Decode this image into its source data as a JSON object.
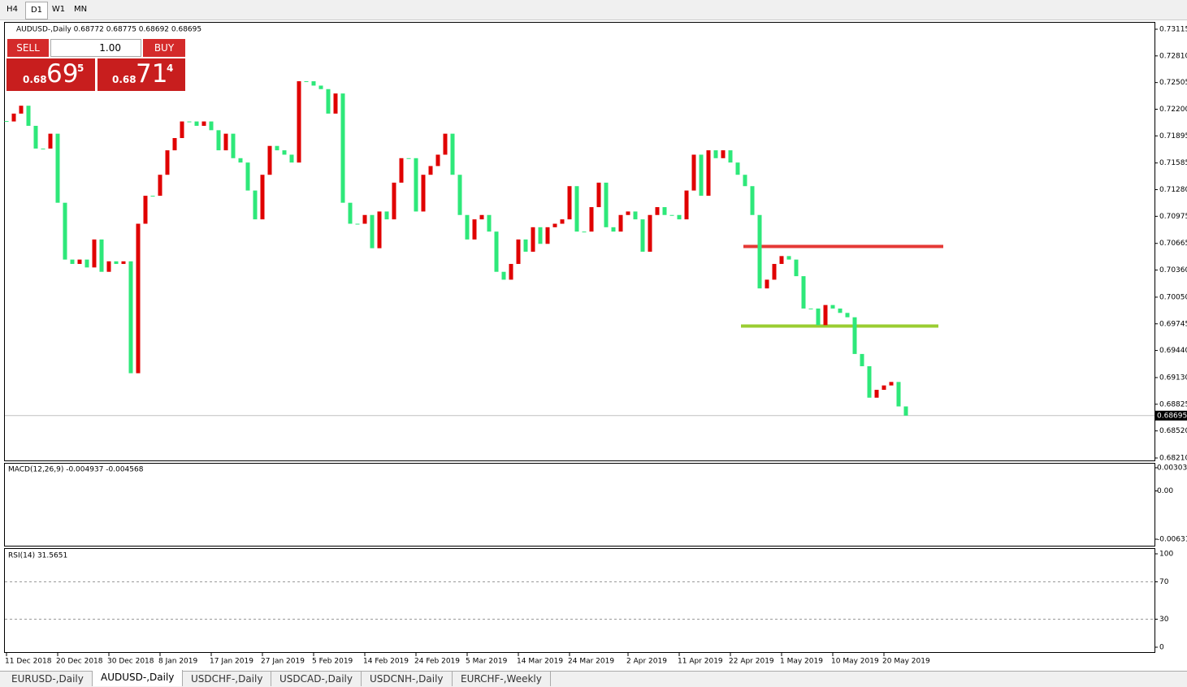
{
  "toolbar": {
    "timeframes": [
      "H4",
      "D1",
      "W1",
      "MN"
    ]
  },
  "trade_panel": {
    "sell": "SELL",
    "lots": "1.00",
    "buy": "BUY",
    "bid_prefix": "0.68",
    "bid_big": "69",
    "bid_small": "5",
    "ask_prefix": "0.68",
    "ask_big": "71",
    "ask_small": "4"
  },
  "chart_data": {
    "type": "candlestick",
    "title": "AUDUSD-,Daily 0.68772 0.68775 0.68692 0.68695",
    "close": [
      0.7206,
      0.7215,
      0.7224,
      0.7201,
      0.7175,
      0.7175,
      0.7192,
      0.7113,
      0.7048,
      0.7043,
      0.7048,
      0.7039,
      0.7071,
      0.7034,
      0.7046,
      0.7043,
      0.7046,
      0.6918,
      0.7089,
      0.7121,
      0.7121,
      0.7145,
      0.7173,
      0.7187,
      0.7206,
      0.7206,
      0.7201,
      0.7206,
      0.7196,
      0.7173,
      0.7192,
      0.7164,
      0.7159,
      0.7127,
      0.7094,
      0.7145,
      0.7178,
      0.7173,
      0.7168,
      0.7159,
      0.7252,
      0.7252,
      0.7247,
      0.7243,
      0.7215,
      0.7238,
      0.7113,
      0.7089,
      0.7089,
      0.7099,
      0.7061,
      0.7103,
      0.7094,
      0.7136,
      0.7164,
      0.7164,
      0.7103,
      0.7145,
      0.7155,
      0.7168,
      0.7192,
      0.7145,
      0.7099,
      0.7071,
      0.7094,
      0.7099,
      0.708,
      0.7034,
      0.7025,
      0.7043,
      0.7071,
      0.7057,
      0.7085,
      0.7066,
      0.7085,
      0.7089,
      0.7094,
      0.7132,
      0.708,
      0.708,
      0.7108,
      0.7136,
      0.7085,
      0.708,
      0.7099,
      0.7103,
      0.7094,
      0.7057,
      0.7099,
      0.7108,
      0.7099,
      0.7099,
      0.7094,
      0.7127,
      0.7168,
      0.7121,
      0.7173,
      0.7164,
      0.7173,
      0.7159,
      0.7145,
      0.7132,
      0.7099,
      0.7015,
      0.7025,
      0.7043,
      0.7052,
      0.7048,
      0.7029,
      0.6992,
      0.6992,
      0.6973,
      0.6996,
      0.6992,
      0.6987,
      0.6982,
      0.694,
      0.6926,
      0.689,
      0.6899,
      0.6904,
      0.6908,
      0.688,
      0.68695
    ],
    "categories": [
      "11 Dec 2018",
      null,
      null,
      null,
      null,
      null,
      null,
      "20 Dec 2018",
      null,
      null,
      null,
      null,
      null,
      null,
      "30 Dec 2018",
      null,
      null,
      null,
      null,
      null,
      null,
      "8 Jan 2019",
      null,
      null,
      null,
      null,
      null,
      null,
      "17 Jan 2019",
      null,
      null,
      null,
      null,
      null,
      null,
      "27 Jan 2019",
      null,
      null,
      null,
      null,
      null,
      null,
      "5 Feb 2019",
      null,
      null,
      null,
      null,
      null,
      null,
      "14 Feb 2019",
      null,
      null,
      null,
      null,
      null,
      null,
      "24 Feb 2019",
      null,
      null,
      null,
      null,
      null,
      null,
      "5 Mar 2019",
      null,
      null,
      null,
      null,
      null,
      null,
      "14 Mar 2019",
      null,
      null,
      null,
      null,
      null,
      null,
      "24 Mar 2019",
      null,
      null,
      null,
      null,
      null,
      null,
      null,
      "2 Apr 2019",
      null,
      null,
      null,
      null,
      null,
      null,
      "11 Apr 2019",
      null,
      null,
      null,
      null,
      null,
      null,
      "22 Apr 2019",
      null,
      null,
      null,
      null,
      null,
      null,
      "1 May 2019",
      null,
      null,
      null,
      null,
      null,
      null,
      "10 May 2019",
      null,
      null,
      null,
      null,
      null,
      null,
      "20 May 2019",
      null,
      null,
      null
    ],
    "up_color": "#e00000",
    "down_color": "#2ee87a",
    "ylim": [
      0.6821,
      0.73115
    ],
    "yticks": [
      0.73115,
      {
        "value": 0.7281,
        "label": "0.72810"
      },
      0.72505,
      {
        "value": 0.722,
        "label": "0.72200"
      },
      0.71895,
      0.71585,
      {
        "value": 0.7128,
        "label": "0.71280"
      },
      0.70975,
      0.70665,
      {
        "value": 0.7036,
        "label": "0.70360"
      },
      {
        "value": 0.7005,
        "label": "0.70050"
      },
      0.69745,
      {
        "value": 0.6944,
        "label": "0.69440"
      },
      {
        "value": 0.6913,
        "label": "0.69130"
      },
      0.68825,
      {
        "value": 0.6852,
        "label": "0.68520"
      },
      {
        "value": 0.6821,
        "label": "0.68210"
      }
    ],
    "last": {
      "value": 0.68695,
      "label": "0.68695"
    },
    "levels": [
      {
        "value": 0.7063,
        "color": "#e53935"
      },
      {
        "value": 0.6972,
        "color": "#9acd32"
      }
    ]
  },
  "macd": {
    "title": "MACD(12,26,9) -0.004937 -0.004568",
    "yticks": [
      0.003035,
      {
        "value": 0,
        "label": "0.00"
      },
      -0.00631
    ]
  },
  "rsi": {
    "title": "RSI(14) 31.5651",
    "ylim": [
      0,
      100
    ],
    "yticks": [
      100,
      70,
      30,
      0
    ],
    "levels": [
      70,
      30
    ]
  },
  "tabs": [
    "EURUSD-,Daily",
    "AUDUSD-,Daily",
    "USDCHF-,Daily",
    "USDCAD-,Daily",
    "USDCNH-,Daily",
    "EURCHF-,Weekly"
  ]
}
